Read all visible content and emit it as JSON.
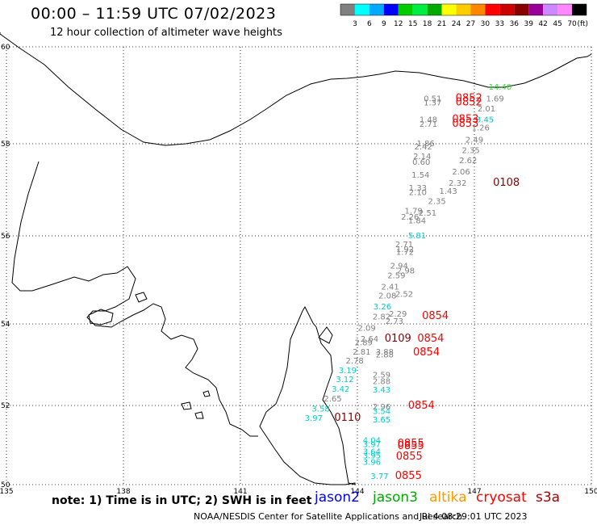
{
  "header": {
    "title": "00:00 – 11:59 UTC 07/02/2023",
    "subtitle": "12 hour collection of altimeter wave heights"
  },
  "colorbar": {
    "unit": "(ft)",
    "colors": [
      "#808080",
      "#00ffff",
      "#00aaff",
      "#0000ff",
      "#00cc00",
      "#00ee44",
      "#00aa00",
      "#ffff00",
      "#ffcc00",
      "#ff8800",
      "#ff0000",
      "#cc0000",
      "#880000",
      "#990099",
      "#cc88ff",
      "#ff88ff",
      "#000000"
    ],
    "labels": [
      "3",
      "6",
      "9",
      "12",
      "15",
      "18",
      "21",
      "24",
      "27",
      "30",
      "33",
      "36",
      "39",
      "42",
      "45",
      "70"
    ]
  },
  "axes": {
    "lat": [
      "60",
      "58",
      "56",
      "54",
      "52",
      "50"
    ],
    "lon": [
      "135",
      "138",
      "141",
      "144",
      "147",
      "150"
    ]
  },
  "observations": [
    {
      "t": "14.40",
      "c": "#33dd33",
      "lat": 59.18,
      "lon": 147.66
    },
    {
      "t": "0.51",
      "c": "#808080",
      "lat": 58.94,
      "lon": 145.93
    },
    {
      "t": "0852",
      "c": "#ff0000",
      "lat": 58.94,
      "lon": 146.86
    },
    {
      "t": "1.69",
      "c": "#808080",
      "lat": 58.94,
      "lon": 147.53
    },
    {
      "t": "1.37",
      "c": "#808080",
      "lat": 58.86,
      "lon": 145.93
    },
    {
      "t": "0852",
      "c": "#ff0000",
      "lat": 58.86,
      "lon": 146.86
    },
    {
      "t": "2.01",
      "c": "#808080",
      "lat": 58.73,
      "lon": 147.31
    },
    {
      "t": "1.48",
      "c": "#808080",
      "lat": 58.51,
      "lon": 145.82
    },
    {
      "t": "0853",
      "c": "#ff0000",
      "lat": 58.51,
      "lon": 146.77
    },
    {
      "t": "3.45",
      "c": "#00cccc",
      "lat": 58.51,
      "lon": 147.27
    },
    {
      "t": "2.71",
      "c": "#808080",
      "lat": 58.42,
      "lon": 145.82
    },
    {
      "t": "0853",
      "c": "#ff0000",
      "lat": 58.42,
      "lon": 146.77
    },
    {
      "t": "1.26",
      "c": "#808080",
      "lat": 58.34,
      "lon": 147.16
    },
    {
      "t": "1.86",
      "c": "#808080",
      "lat": 58.02,
      "lon": 145.75
    },
    {
      "t": "2.49",
      "c": "#808080",
      "lat": 58.09,
      "lon": 147.0
    },
    {
      "t": "2.42",
      "c": "#808080",
      "lat": 57.95,
      "lon": 145.69
    },
    {
      "t": "2.35",
      "c": "#808080",
      "lat": 57.87,
      "lon": 146.91
    },
    {
      "t": "2.14",
      "c": "#808080",
      "lat": 57.74,
      "lon": 145.66
    },
    {
      "t": "0.60",
      "c": "#808080",
      "lat": 57.61,
      "lon": 145.64
    },
    {
      "t": "2.62",
      "c": "#808080",
      "lat": 57.65,
      "lon": 146.84
    },
    {
      "t": "1.54",
      "c": "#808080",
      "lat": 57.33,
      "lon": 145.62
    },
    {
      "t": "2.06",
      "c": "#808080",
      "lat": 57.4,
      "lon": 146.66
    },
    {
      "t": "2.32",
      "c": "#808080",
      "lat": 57.16,
      "lon": 146.57
    },
    {
      "t": "0108",
      "c": "#880000",
      "lat": 57.16,
      "lon": 147.82
    },
    {
      "t": "1.33",
      "c": "#808080",
      "lat": 57.05,
      "lon": 145.55
    },
    {
      "t": "1.43",
      "c": "#808080",
      "lat": 56.98,
      "lon": 146.33
    },
    {
      "t": "2.10",
      "c": "#808080",
      "lat": 56.96,
      "lon": 145.55
    },
    {
      "t": "2.35",
      "c": "#808080",
      "lat": 56.76,
      "lon": 146.04
    },
    {
      "t": "1.79",
      "c": "#808080",
      "lat": 56.55,
      "lon": 145.44
    },
    {
      "t": "2.51",
      "c": "#808080",
      "lat": 56.51,
      "lon": 145.8
    },
    {
      "t": "2.26",
      "c": "#808080",
      "lat": 56.42,
      "lon": 145.35
    },
    {
      "t": "1.84",
      "c": "#808080",
      "lat": 56.34,
      "lon": 145.53
    },
    {
      "t": "5.81",
      "c": "#00cccc",
      "lat": 56.02,
      "lon": 145.53
    },
    {
      "t": "2.71",
      "c": "#808080",
      "lat": 55.82,
      "lon": 145.2
    },
    {
      "t": "1.92",
      "c": "#808080",
      "lat": 55.71,
      "lon": 145.22
    },
    {
      "t": "1.72",
      "c": "#808080",
      "lat": 55.64,
      "lon": 145.22
    },
    {
      "t": "2.94",
      "c": "#808080",
      "lat": 55.33,
      "lon": 145.07
    },
    {
      "t": "2.98",
      "c": "#808080",
      "lat": 55.22,
      "lon": 145.24
    },
    {
      "t": "2.59",
      "c": "#808080",
      "lat": 55.11,
      "lon": 145.0
    },
    {
      "t": "2.41",
      "c": "#808080",
      "lat": 54.85,
      "lon": 144.84
    },
    {
      "t": "2.52",
      "c": "#808080",
      "lat": 54.69,
      "lon": 145.2
    },
    {
      "t": "2.08",
      "c": "#808080",
      "lat": 54.65,
      "lon": 144.77
    },
    {
      "t": "3.26",
      "c": "#00cccc",
      "lat": 54.4,
      "lon": 144.64
    },
    {
      "t": "2.82",
      "c": "#808080",
      "lat": 54.17,
      "lon": 144.62
    },
    {
      "t": "2.29",
      "c": "#808080",
      "lat": 54.24,
      "lon": 145.04
    },
    {
      "t": "2.73",
      "c": "#808080",
      "lat": 54.07,
      "lon": 144.95
    },
    {
      "t": "0854",
      "c": "#ff0000",
      "lat": 54.18,
      "lon": 146.0
    },
    {
      "t": "2.09",
      "c": "#808080",
      "lat": 53.91,
      "lon": 144.24
    },
    {
      "t": "2.64",
      "c": "#808080",
      "lat": 53.64,
      "lon": 144.31
    },
    {
      "t": "0109",
      "c": "#880000",
      "lat": 53.64,
      "lon": 145.04
    },
    {
      "t": "0854",
      "c": "#ff0000",
      "lat": 53.64,
      "lon": 145.88
    },
    {
      "t": "2.89",
      "c": "#808080",
      "lat": 53.55,
      "lon": 144.16
    },
    {
      "t": "2.81",
      "c": "#808080",
      "lat": 53.33,
      "lon": 144.11
    },
    {
      "t": "3.88",
      "c": "#808080",
      "lat": 53.33,
      "lon": 144.7
    },
    {
      "t": "2.88",
      "c": "#808080",
      "lat": 53.26,
      "lon": 144.7
    },
    {
      "t": "0854",
      "c": "#ff0000",
      "lat": 53.31,
      "lon": 145.77
    },
    {
      "t": "2.78",
      "c": "#808080",
      "lat": 53.11,
      "lon": 143.93
    },
    {
      "t": "3.19",
      "c": "#00cccc",
      "lat": 52.87,
      "lon": 143.75
    },
    {
      "t": "2.59",
      "c": "#808080",
      "lat": 52.76,
      "lon": 144.62
    },
    {
      "t": "3.12",
      "c": "#00cccc",
      "lat": 52.65,
      "lon": 143.68
    },
    {
      "t": "2.88",
      "c": "#808080",
      "lat": 52.6,
      "lon": 144.62
    },
    {
      "t": "3.42",
      "c": "#00cccc",
      "lat": 52.42,
      "lon": 143.57
    },
    {
      "t": "3.43",
      "c": "#00cccc",
      "lat": 52.4,
      "lon": 144.62
    },
    {
      "t": "2.65",
      "c": "#808080",
      "lat": 52.18,
      "lon": 143.37
    },
    {
      "t": "2.96",
      "c": "#808080",
      "lat": 51.98,
      "lon": 144.62
    },
    {
      "t": "0854",
      "c": "#ff0000",
      "lat": 52.0,
      "lon": 145.64
    },
    {
      "t": "3.58",
      "c": "#00cccc",
      "lat": 51.93,
      "lon": 143.06
    },
    {
      "t": "3.54",
      "c": "#00cccc",
      "lat": 51.87,
      "lon": 144.62
    },
    {
      "t": "3.97",
      "c": "#00cccc",
      "lat": 51.69,
      "lon": 142.88
    },
    {
      "t": "0110",
      "c": "#880000",
      "lat": 51.69,
      "lon": 143.75
    },
    {
      "t": "3.65",
      "c": "#00cccc",
      "lat": 51.65,
      "lon": 144.62
    },
    {
      "t": "4.04",
      "c": "#00cccc",
      "lat": 51.13,
      "lon": 144.37
    },
    {
      "t": "3.97",
      "c": "#00cccc",
      "lat": 51.03,
      "lon": 144.37
    },
    {
      "t": "0855",
      "c": "#ff0000",
      "lat": 51.04,
      "lon": 145.37
    },
    {
      "t": "0855",
      "c": "#ff0000",
      "lat": 50.98,
      "lon": 145.37
    },
    {
      "t": "3.64",
      "c": "#00cccc",
      "lat": 50.85,
      "lon": 144.37
    },
    {
      "t": "3.95",
      "c": "#00cccc",
      "lat": 50.75,
      "lon": 144.37
    },
    {
      "t": "0855",
      "c": "#ff0000",
      "lat": 50.71,
      "lon": 145.33
    },
    {
      "t": "3.96",
      "c": "#00cccc",
      "lat": 50.58,
      "lon": 144.37
    },
    {
      "t": "3.77",
      "c": "#00cccc",
      "lat": 50.22,
      "lon": 144.57
    },
    {
      "t": "0855",
      "c": "#ff0000",
      "lat": 50.22,
      "lon": 145.31
    }
  ],
  "footer": {
    "note": "note: 1) Time is in UTC; 2) SWH is in feet",
    "satellites": [
      {
        "name": "jason2",
        "color": "#0000ff"
      },
      {
        "name": "jason3",
        "color": "#00aa00"
      },
      {
        "name": "altika",
        "color": "#ff9900"
      },
      {
        "name": "cryosat",
        "color": "#ff0000"
      },
      {
        "name": "s3a",
        "color": "#aa0000"
      }
    ],
    "credit": "NOAA/NESDIS Center for Satellite Applications and Research",
    "timestamp": "Jul  4 08:29:01 UTC 2023"
  }
}
